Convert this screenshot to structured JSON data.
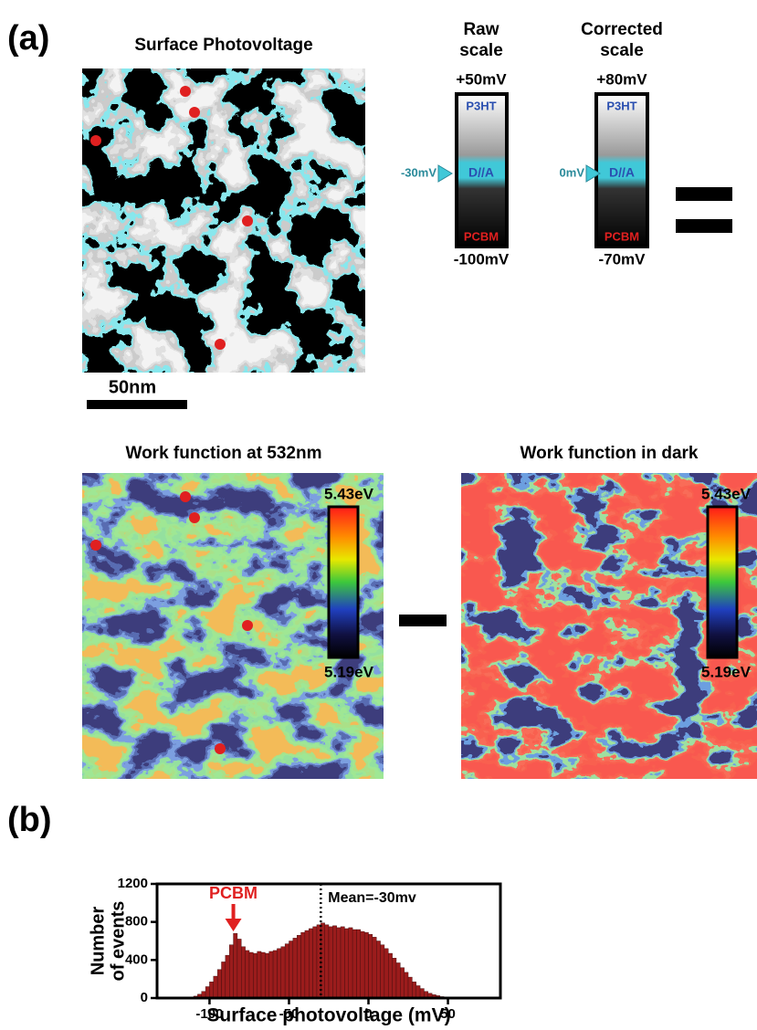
{
  "panel_a": {
    "label": "(a)",
    "spv_title": "Surface Photovoltage",
    "scale_bar": "50nm",
    "raw_scale": {
      "title": [
        "Raw",
        "scale"
      ],
      "top": "+50mV",
      "bottom": "-100mV",
      "marker": "-30mV",
      "top_label": "P3HT",
      "mid_label": "D//A",
      "bottom_label": "PCBM"
    },
    "corrected_scale": {
      "title": [
        "Corrected",
        "scale"
      ],
      "top": "+80mV",
      "bottom": "-70mV",
      "marker": "0mV",
      "top_label": "P3HT",
      "mid_label": "D//A",
      "bottom_label": "PCBM"
    },
    "wf_light": {
      "title": "Work function at 532nm",
      "top": "5.43eV",
      "bottom": "5.19eV"
    },
    "wf_dark": {
      "title": "Work function in dark",
      "top": "5.43eV",
      "bottom": "5.19eV"
    }
  },
  "panel_b": {
    "label": "(b)"
  },
  "chart_data": {
    "type": "histogram",
    "xlabel": "Surface photovoltage (mV)",
    "ylabel": [
      "Number",
      "of events"
    ],
    "xlim": [
      -133,
      83
    ],
    "ylim": [
      0,
      1200
    ],
    "xticks": [
      -100,
      -50,
      0,
      50
    ],
    "yticks": [
      0,
      400,
      800,
      1200
    ],
    "color": "#9b1c1c",
    "bins": [
      -112.5,
      -110,
      -107.5,
      -105,
      -102.5,
      -100,
      -97.5,
      -95,
      -92.5,
      -90,
      -87.5,
      -85,
      -82.5,
      -80,
      -77.5,
      -75,
      -72.5,
      -70,
      -67.5,
      -65,
      -62.5,
      -60,
      -57.5,
      -55,
      -52.5,
      -50,
      -47.5,
      -45,
      -42.5,
      -40,
      -37.5,
      -35,
      -32.5,
      -30,
      -27.5,
      -25,
      -22.5,
      -20,
      -17.5,
      -15,
      -12.5,
      -10,
      -7.5,
      -5,
      -2.5,
      0,
      2.5,
      5,
      7.5,
      10,
      12.5,
      15,
      17.5,
      20,
      22.5,
      25,
      27.5,
      30,
      32.5,
      35,
      37.5,
      40,
      42.5,
      45,
      47.5,
      50
    ],
    "counts": [
      10,
      20,
      40,
      70,
      120,
      170,
      230,
      300,
      380,
      450,
      560,
      680,
      620,
      540,
      500,
      480,
      470,
      490,
      480,
      470,
      490,
      500,
      520,
      540,
      570,
      600,
      630,
      660,
      690,
      710,
      730,
      750,
      770,
      790,
      770,
      750,
      760,
      740,
      750,
      730,
      740,
      720,
      720,
      700,
      690,
      670,
      640,
      600,
      560,
      520,
      470,
      420,
      370,
      320,
      270,
      220,
      170,
      130,
      100,
      70,
      50,
      35,
      25,
      15,
      8
    ],
    "mean_line": {
      "label": "Mean=-30mv",
      "value": -30
    },
    "peak_arrow": {
      "label": "PCBM",
      "value": -85
    }
  }
}
